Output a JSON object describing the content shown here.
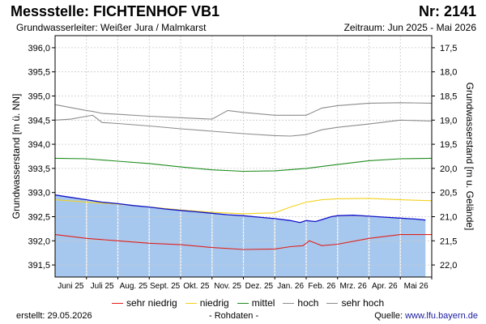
{
  "header": {
    "title": "Messstelle: FICHTENHOF VB1",
    "nr": "Nr: 2141",
    "aquifer": "Grundwasserleiter:   Weißer Jura / Malmkarst",
    "period": "Zeitraum: Jun 2025 - Mai 2026"
  },
  "footer": {
    "created": "erstellt:  29.05.2026",
    "raw": "- Rohdaten -",
    "source_label": "Quelle: ",
    "source_url": "www.lfu.bayern.de"
  },
  "colors": {
    "sehr_niedrig": "#e0201c",
    "niedrig": "#f2d21e",
    "mittel": "#1e8c1e",
    "hoch": "#8c8c8c",
    "sehr_hoch": "#8c8c8c",
    "messung": "#1212c8",
    "fill": "#a7c8ee"
  },
  "chart_data": {
    "type": "line",
    "ylabel": "Grundwasserstand [m ü. NN]",
    "y2label": "Grundwasserstand [m u. Gelände]",
    "ylim": [
      391.25,
      396.25
    ],
    "y_ticks": [
      391.5,
      392.0,
      392.5,
      393.0,
      393.5,
      394.0,
      394.5,
      395.0,
      395.5,
      396.0
    ],
    "y_tick_labels": [
      "391,5",
      "392,0",
      "392,5",
      "393,0",
      "393,5",
      "394,0",
      "394,5",
      "395,0",
      "395,5",
      "396,0"
    ],
    "y2_ticks": [
      22.0,
      21.5,
      21.0,
      20.5,
      20.0,
      19.5,
      19.0,
      18.5,
      18.0,
      17.5
    ],
    "y2_tick_labels": [
      "22,0",
      "21,5",
      "21,0",
      "20,5",
      "20,0",
      "19,5",
      "19,0",
      "18,5",
      "18,0",
      "17,5"
    ],
    "y2_offset": 413.5,
    "xlim": [
      0,
      12
    ],
    "x_tick_labels": [
      "Juni 25",
      "Juli 25",
      "Aug. 25",
      "Sept. 25",
      "Okt. 25",
      "Nov. 25",
      "Dez. 25",
      "Jan. 26",
      "Feb. 26",
      "Mrz. 26",
      "Apr. 26",
      "Mai 26"
    ],
    "grid": true,
    "series": [
      {
        "name": "sehr hoch",
        "key": "sehr_hoch",
        "x": [
          0,
          0.5,
          1,
          1.2,
          1.5,
          2,
          3,
          4,
          5,
          5.5,
          6,
          7,
          8,
          8.5,
          9,
          10,
          11,
          12
        ],
        "y": [
          394.82,
          394.76,
          394.7,
          394.68,
          394.64,
          394.62,
          394.58,
          394.55,
          394.52,
          394.7,
          394.66,
          394.6,
          394.6,
          394.75,
          394.8,
          394.85,
          394.86,
          394.85
        ]
      },
      {
        "name": "hoch",
        "key": "hoch",
        "x": [
          0,
          0.5,
          1,
          1.2,
          1.5,
          2,
          3,
          4,
          5,
          6,
          7,
          7.5,
          8,
          8.5,
          9,
          10,
          11,
          12
        ],
        "y": [
          394.5,
          394.52,
          394.58,
          394.6,
          394.45,
          394.43,
          394.38,
          394.32,
          394.27,
          394.22,
          394.18,
          394.17,
          394.2,
          394.3,
          394.35,
          394.42,
          394.5,
          394.48
        ]
      },
      {
        "name": "mittel",
        "key": "mittel",
        "x": [
          0,
          1,
          2,
          3,
          4,
          5,
          6,
          7,
          8,
          9,
          10,
          11,
          12
        ],
        "y": [
          393.71,
          393.7,
          393.65,
          393.6,
          393.53,
          393.47,
          393.44,
          393.45,
          393.5,
          393.58,
          393.66,
          393.7,
          393.71
        ]
      },
      {
        "name": "niedrig",
        "key": "niedrig",
        "x": [
          0,
          1,
          2,
          3,
          4,
          5,
          6,
          7,
          7.5,
          8,
          8.5,
          9,
          10,
          11,
          12
        ],
        "y": [
          392.85,
          392.8,
          392.76,
          392.7,
          392.64,
          392.59,
          392.56,
          392.58,
          392.7,
          392.8,
          392.85,
          392.87,
          392.88,
          392.85,
          392.83
        ]
      },
      {
        "name": "sehr niedrig",
        "key": "sehr_niedrig",
        "x": [
          0,
          1,
          2,
          3,
          4,
          5,
          6,
          7,
          7.5,
          7.9,
          8.1,
          8.3,
          8.5,
          9,
          10,
          11,
          12
        ],
        "y": [
          392.13,
          392.05,
          392.0,
          391.95,
          391.92,
          391.86,
          391.82,
          391.83,
          391.88,
          391.9,
          392.0,
          391.95,
          391.9,
          391.93,
          392.05,
          392.13,
          392.13
        ]
      },
      {
        "name": "Messwerte",
        "key": "messung",
        "fill": true,
        "x": [
          0,
          0.5,
          1,
          1.5,
          2,
          2.5,
          3,
          3.5,
          4,
          4.5,
          5,
          5.5,
          6,
          6.5,
          7,
          7.5,
          7.8,
          8,
          8.3,
          8.5,
          8.8,
          9,
          9.5,
          10,
          10.5,
          11,
          11.5,
          11.8
        ],
        "y": [
          392.95,
          392.9,
          392.85,
          392.8,
          392.77,
          392.73,
          392.7,
          392.66,
          392.63,
          392.6,
          392.57,
          392.54,
          392.52,
          392.49,
          392.46,
          392.42,
          392.38,
          392.42,
          392.4,
          392.44,
          392.5,
          392.52,
          392.53,
          392.51,
          392.49,
          392.47,
          392.45,
          392.43
        ]
      }
    ]
  },
  "legend": [
    {
      "key": "sehr_niedrig",
      "label": "sehr niedrig"
    },
    {
      "key": "niedrig",
      "label": "niedrig"
    },
    {
      "key": "mittel",
      "label": "mittel"
    },
    {
      "key": "hoch",
      "label": "hoch"
    },
    {
      "key": "sehr_hoch",
      "label": "sehr hoch"
    }
  ]
}
